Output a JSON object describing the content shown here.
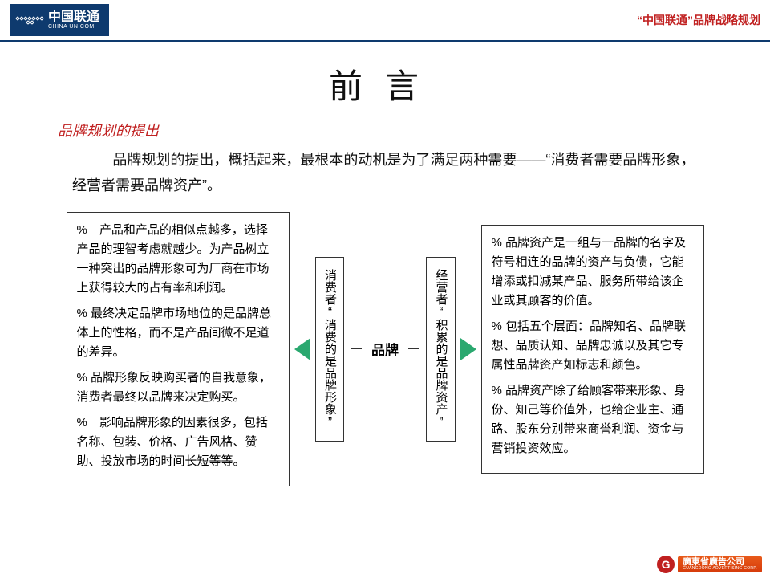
{
  "header": {
    "logo_cn": "中国联通",
    "logo_en": "CHINA UNICOM",
    "right_text": "“中国联通”品牌战略规划"
  },
  "title": "前言",
  "subtitle": "品牌规划的提出",
  "intro": "品牌规划的提出，概括起来，最根本的动机是为了满足两种需要——“消费者需要品牌形象，经营者需要品牌资产”。",
  "left_box": {
    "p1": "%　产品和产品的相似点越多，选择产品的理智考虑就越少。为产品树立一种突出的品牌形象可为厂商在市场上获得较大的占有率和利润。",
    "p2": "% 最终决定品牌市场地位的是品牌总体上的性格，而不是产品间微不足道的差异。",
    "p3": "% 品牌形象反映购买者的自我意象，消费者最终以品牌来决定购买。",
    "p4": "%　影响品牌形象的因素很多，包括名称、包装、价格、广告风格、赞助、投放市场的时间长短等等。"
  },
  "vert_left": "消费者“消费的是品牌形象”",
  "center": "品牌",
  "vert_right": "经营者“积累的是品牌资产”",
  "right_box": {
    "p1": "% 品牌资产是一组与一品牌的名字及符号相连的品牌的资产与负债，它能增添或扣减某产品、服务所带给该企业或其顾客的价值。",
    "p2": "% 包括五个层面：品牌知名、品牌联想、品质认知、品牌忠诚以及其它专属性品牌资产如标志和颜色。",
    "p3": "% 品牌资产除了给顾客带来形象、身份、知己等价值外，也给企业主、通路、股东分别带来商誉利润、资金与营销投资效应。"
  },
  "footer": {
    "badge": "G",
    "cn": "廣東省廣告公司",
    "en": "GUANGDONG ADVERTISING CORP."
  },
  "colors": {
    "brand_blue": "#0e3a6e",
    "accent_red": "#c02020",
    "arrow_green": "#2aa86f"
  }
}
